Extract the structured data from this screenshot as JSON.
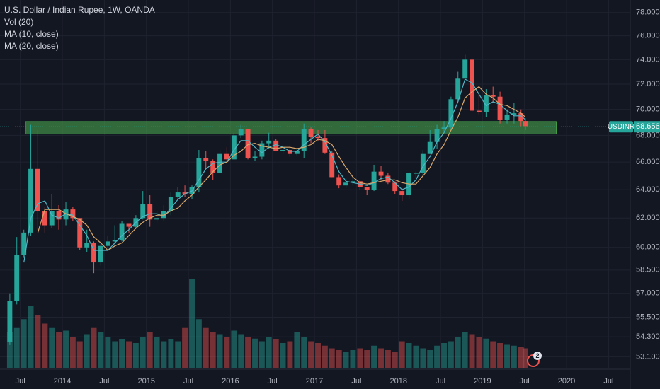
{
  "chart_data": {
    "type": "candlestick",
    "title": "U.S. Dollar / Indian Rupee, 1W, OANDA",
    "log_scale": true,
    "grid": true,
    "up_color": "#26a69a",
    "down_color": "#ef5350",
    "x": [
      2013.375,
      2013.458,
      2013.542,
      2013.625,
      2013.708,
      2013.792,
      2013.875,
      2013.958,
      2014.042,
      2014.125,
      2014.208,
      2014.292,
      2014.375,
      2014.458,
      2014.542,
      2014.625,
      2014.708,
      2014.792,
      2014.875,
      2014.958,
      2015.042,
      2015.125,
      2015.208,
      2015.292,
      2015.375,
      2015.458,
      2015.542,
      2015.625,
      2015.708,
      2015.792,
      2015.875,
      2015.958,
      2016.042,
      2016.125,
      2016.208,
      2016.292,
      2016.375,
      2016.458,
      2016.542,
      2016.625,
      2016.708,
      2016.792,
      2016.875,
      2016.958,
      2017.042,
      2017.125,
      2017.208,
      2017.292,
      2017.375,
      2017.458,
      2017.542,
      2017.625,
      2017.708,
      2017.792,
      2017.875,
      2017.958,
      2018.042,
      2018.125,
      2018.208,
      2018.292,
      2018.375,
      2018.458,
      2018.542,
      2018.625,
      2018.708,
      2018.792,
      2018.875,
      2018.958,
      2019.042,
      2019.125,
      2019.208,
      2019.292,
      2019.375,
      2019.458,
      2019.51
    ],
    "open": [
      54.0,
      56.5,
      59.5,
      61.0,
      65.5,
      62.5,
      61.5,
      62.5,
      61.9,
      62.6,
      62.0,
      60.0,
      60.3,
      59.0,
      60.1,
      60.4,
      60.5,
      61.6,
      61.4,
      62.0,
      63.0,
      61.9,
      62.0,
      62.5,
      63.5,
      63.8,
      63.7,
      64.2,
      66.3,
      66.1,
      65.2,
      66.6,
      66.2,
      68.0,
      68.5,
      66.3,
      66.4,
      67.4,
      67.6,
      66.8,
      66.9,
      66.6,
      66.8,
      68.5,
      67.9,
      67.8,
      66.7,
      64.9,
      64.3,
      64.5,
      64.6,
      64.2,
      64.0,
      65.3,
      65.0,
      64.5,
      63.9,
      63.6,
      65.2,
      65.2,
      66.6,
      67.5,
      68.5,
      68.6,
      70.8,
      72.5,
      74.0,
      69.9,
      69.8,
      71.1,
      71.0,
      69.2,
      69.6,
      69.7,
      69.1
    ],
    "high": [
      57.0,
      60.7,
      61.2,
      68.8,
      68.4,
      62.8,
      63.7,
      62.9,
      63.1,
      62.8,
      62.0,
      61.2,
      60.4,
      60.4,
      60.8,
      61.5,
      61.8,
      61.6,
      62.2,
      63.9,
      63.6,
      62.5,
      62.9,
      63.8,
      64.2,
      64.3,
      64.3,
      66.9,
      66.8,
      66.2,
      66.9,
      67.1,
      68.2,
      68.8,
      68.5,
      66.8,
      67.6,
      68.2,
      67.7,
      67.2,
      67.2,
      67.0,
      68.9,
      68.6,
      68.4,
      68.4,
      66.8,
      65.1,
      64.9,
      64.8,
      64.7,
      64.2,
      65.8,
      65.7,
      65.2,
      64.6,
      64.1,
      65.3,
      65.3,
      66.9,
      68.4,
      68.8,
      69.1,
      71.0,
      73.0,
      74.4,
      74.1,
      71.3,
      71.6,
      71.8,
      71.4,
      70.0,
      70.5,
      70.0,
      69.3
    ],
    "low": [
      53.8,
      56.3,
      59.3,
      60.8,
      61.2,
      61.0,
      61.3,
      61.2,
      61.5,
      61.8,
      59.8,
      59.7,
      58.3,
      58.8,
      59.8,
      60.2,
      60.4,
      61.0,
      61.3,
      61.9,
      61.4,
      61.7,
      61.8,
      62.2,
      63.3,
      63.5,
      63.3,
      63.8,
      65.5,
      64.7,
      65.2,
      65.9,
      66.2,
      67.8,
      66.2,
      66.1,
      66.2,
      67.0,
      66.8,
      66.6,
      66.4,
      66.5,
      66.3,
      67.4,
      67.6,
      66.6,
      64.9,
      64.1,
      64.1,
      64.3,
      64.0,
      63.6,
      63.9,
      64.7,
      64.4,
      63.7,
      63.2,
      63.3,
      64.8,
      65.0,
      66.6,
      67.0,
      68.3,
      68.4,
      70.6,
      72.4,
      69.8,
      69.6,
      69.4,
      70.5,
      68.9,
      68.9,
      68.9,
      68.7,
      68.4
    ],
    "close": [
      56.5,
      59.5,
      61.0,
      65.5,
      62.5,
      61.5,
      62.5,
      61.9,
      62.6,
      62.0,
      60.0,
      60.3,
      59.0,
      60.1,
      60.4,
      60.5,
      61.6,
      61.4,
      62.0,
      63.0,
      61.9,
      62.0,
      62.5,
      63.5,
      63.8,
      63.7,
      64.2,
      66.3,
      66.1,
      65.2,
      66.6,
      66.2,
      68.0,
      68.5,
      66.3,
      66.4,
      67.4,
      67.6,
      66.8,
      66.9,
      66.6,
      66.8,
      68.5,
      67.9,
      67.8,
      66.7,
      64.9,
      64.3,
      64.5,
      64.6,
      64.2,
      64.0,
      65.3,
      65.0,
      64.5,
      63.9,
      63.6,
      65.2,
      65.2,
      66.6,
      67.5,
      68.5,
      68.6,
      70.8,
      72.5,
      74.0,
      69.9,
      69.8,
      71.1,
      71.0,
      69.2,
      69.6,
      69.7,
      69.1,
      68.7
    ],
    "volume": {
      "name": "Vol (20)",
      "values": [
        40,
        45,
        55,
        70,
        60,
        50,
        45,
        40,
        42,
        35,
        30,
        38,
        45,
        40,
        35,
        30,
        32,
        30,
        28,
        35,
        40,
        35,
        30,
        32,
        30,
        45,
        100,
        55,
        45,
        40,
        38,
        35,
        42,
        38,
        35,
        33,
        30,
        35,
        32,
        28,
        30,
        40,
        35,
        30,
        28,
        25,
        22,
        20,
        18,
        20,
        22,
        20,
        25,
        22,
        20,
        18,
        30,
        28,
        25,
        22,
        20,
        25,
        28,
        30,
        35,
        40,
        38,
        35,
        33,
        30,
        28,
        26,
        25,
        24,
        22
      ]
    },
    "series": [
      {
        "name": "MA (10, close)",
        "color": "#4fb8c8",
        "values": [
          null,
          null,
          59.0,
          62.0,
          63.0,
          63.2,
          62.2,
          62.0,
          62.3,
          62.2,
          61.5,
          60.8,
          59.8,
          59.8,
          59.8,
          60.3,
          60.8,
          61.2,
          61.7,
          62.1,
          62.3,
          62.3,
          62.1,
          62.7,
          63.3,
          63.7,
          63.9,
          64.7,
          65.5,
          65.9,
          66.0,
          66.0,
          66.9,
          67.6,
          67.6,
          67.1,
          66.7,
          67.1,
          67.3,
          67.1,
          66.8,
          66.8,
          67.3,
          67.7,
          68.1,
          67.5,
          66.5,
          65.3,
          64.6,
          64.5,
          64.4,
          64.3,
          64.5,
          64.8,
          64.9,
          64.5,
          64.0,
          64.2,
          64.7,
          65.7,
          66.4,
          67.5,
          68.2,
          69.3,
          70.6,
          72.4,
          72.1,
          71.2,
          70.3,
          70.6,
          70.4,
          69.9,
          69.5,
          69.5,
          69.2
        ]
      },
      {
        "name": "MA (20, close)",
        "color": "#d9a86c",
        "values": [
          null,
          null,
          null,
          null,
          61.0,
          62.6,
          62.6,
          62.6,
          62.3,
          62.1,
          61.9,
          61.5,
          60.7,
          60.3,
          59.8,
          60.1,
          60.3,
          60.8,
          61.3,
          61.7,
          62.0,
          62.2,
          62.2,
          62.5,
          62.7,
          63.2,
          63.6,
          64.2,
          64.7,
          65.3,
          65.8,
          66.0,
          66.5,
          66.8,
          67.3,
          67.4,
          67.2,
          67.1,
          67.0,
          67.1,
          67.1,
          67.0,
          67.1,
          67.3,
          67.7,
          67.6,
          67.3,
          66.4,
          65.6,
          64.9,
          64.5,
          64.4,
          64.5,
          64.6,
          64.7,
          64.7,
          64.5,
          64.4,
          64.4,
          65.0,
          65.6,
          66.6,
          67.3,
          68.4,
          69.4,
          70.9,
          71.4,
          71.8,
          71.2,
          70.9,
          70.4,
          70.3,
          70.0,
          69.7,
          69.4
        ]
      }
    ],
    "highlight_zone": {
      "x": [
        2013.56,
        2019.88
      ],
      "y": [
        68.1,
        69.05
      ],
      "color": "#4caf50"
    },
    "symbol_label": "USDINR",
    "last_price": {
      "value": 68.656,
      "label": "68.656"
    },
    "event_badge": "2",
    "xlim": [
      2013.258,
      2020.758
    ],
    "xticks": [
      {
        "value": 2013.5,
        "label": "Jul"
      },
      2014,
      {
        "value": 2014.5,
        "label": "Jul"
      },
      2015,
      {
        "value": 2015.5,
        "label": "Jul"
      },
      2016,
      {
        "value": 2016.5,
        "label": "Jul"
      },
      2017,
      {
        "value": 2017.5,
        "label": "Jul"
      },
      2018,
      {
        "value": 2018.5,
        "label": "Jul"
      },
      2019,
      {
        "value": 2019.5,
        "label": "Jul"
      },
      2020,
      {
        "value": 2020.5,
        "label": "Jul"
      }
    ],
    "ylim": [
      52.45,
      79.1
    ],
    "yticks": [
      {
        "value": 78,
        "label": "78.000"
      },
      {
        "value": 76,
        "label": "76.000"
      },
      {
        "value": 74,
        "label": "74.000"
      },
      {
        "value": 72,
        "label": "72.000"
      },
      {
        "value": 70,
        "label": "70.000"
      },
      {
        "value": 68,
        "label": "68.000"
      },
      {
        "value": 66,
        "label": "66.000"
      },
      {
        "value": 64,
        "label": "64.000"
      },
      {
        "value": 62,
        "label": "62.000"
      },
      {
        "value": 60,
        "label": "60.000"
      },
      {
        "value": 58.5,
        "label": "58.500"
      },
      {
        "value": 57,
        "label": "57.000"
      },
      {
        "value": 55.5,
        "label": "55.500"
      },
      {
        "value": 54.3,
        "label": "54.300"
      },
      {
        "value": 53.1,
        "label": "53.100"
      }
    ]
  }
}
